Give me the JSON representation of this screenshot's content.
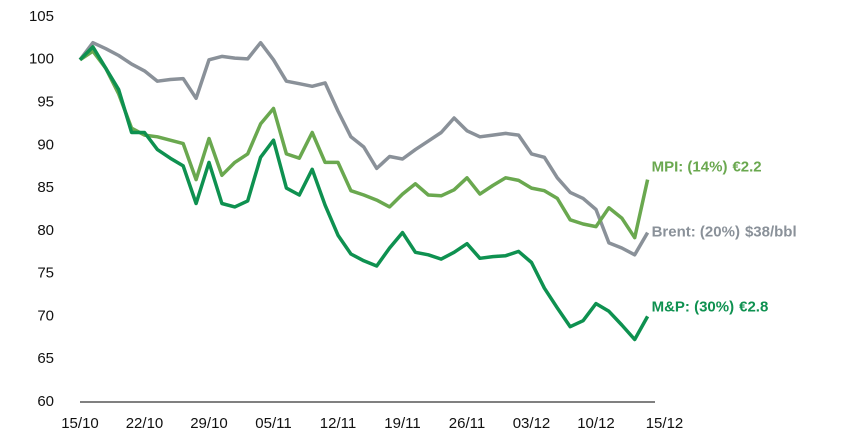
{
  "chart_data": {
    "type": "line",
    "categories": [
      "15/10",
      null,
      null,
      null,
      null,
      "22/10",
      null,
      null,
      null,
      null,
      "29/10",
      null,
      null,
      null,
      null,
      "05/11",
      null,
      null,
      null,
      null,
      "12/11",
      null,
      null,
      null,
      null,
      "19/11",
      null,
      null,
      null,
      null,
      "26/11",
      null,
      null,
      null,
      null,
      "03/12",
      null,
      null,
      null,
      null,
      "10/12",
      null,
      null,
      null,
      null,
      "15/12"
    ],
    "series": [
      {
        "name": "Brent: (20%)",
        "note": "$38/bbl",
        "color": "#8a9199",
        "values": [
          100,
          102,
          101.3,
          100.5,
          99.5,
          98.7,
          97.5,
          97.7,
          97.8,
          95.5,
          100,
          100.4,
          100.2,
          100.1,
          102,
          100,
          97.5,
          97.2,
          96.9,
          97.3,
          94,
          91,
          89.8,
          87.3,
          88.7,
          88.4,
          89.5,
          90.5,
          91.5,
          93.2,
          91.7,
          91,
          91.2,
          91.4,
          91.2,
          89,
          88.6,
          86.2,
          84.5,
          83.8,
          82.5,
          78.6,
          78,
          77.2,
          79.8,
          null
        ]
      },
      {
        "name": "MPI: (14%)",
        "note": "€2.2",
        "color": "#6aa84f",
        "values": [
          100,
          101,
          99,
          96,
          92,
          91.2,
          91,
          90.6,
          90.2,
          86,
          90.8,
          86.5,
          88,
          89,
          92.5,
          94.3,
          89,
          88.5,
          91.5,
          88,
          88,
          84.7,
          84.2,
          83.6,
          82.8,
          84.3,
          85.5,
          84.2,
          84.1,
          84.8,
          86.2,
          84.3,
          85.3,
          86.2,
          85.9,
          85,
          84.7,
          83.8,
          81.3,
          80.8,
          80.5,
          82.7,
          81.5,
          79.2,
          86,
          null
        ]
      },
      {
        "name": "M&P: (30%)",
        "note": "€2.8",
        "color": "#0e9150",
        "values": [
          100,
          101.5,
          99,
          96.5,
          91.5,
          91.5,
          89.5,
          88.5,
          87.6,
          83.2,
          88,
          83.2,
          82.8,
          83.5,
          88.6,
          90.6,
          85,
          84.2,
          87.2,
          83,
          79.5,
          77.3,
          76.5,
          75.9,
          78,
          79.8,
          77.5,
          77.2,
          76.7,
          77.5,
          78.5,
          76.8,
          77,
          77.1,
          77.6,
          76.3,
          73.3,
          71,
          68.8,
          69.5,
          71.5,
          70.6,
          69,
          67.3,
          70,
          null
        ]
      }
    ],
    "ylim": [
      60,
      105
    ],
    "yticks": [
      60,
      65,
      70,
      75,
      80,
      85,
      90,
      95,
      100,
      105
    ],
    "grid": false
  }
}
